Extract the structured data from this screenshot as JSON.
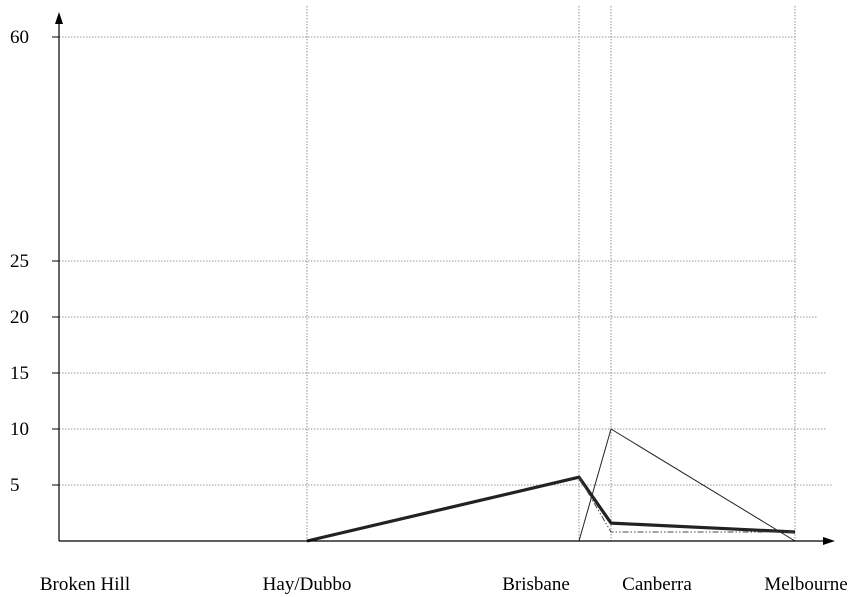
{
  "chart_data": {
    "type": "line",
    "title": "",
    "xlabel": "",
    "ylabel": "",
    "categories": [
      "Broken Hill",
      "Hay/Dubbo",
      "Brisbane",
      "Canberra",
      "Melbourne"
    ],
    "y_ticks": [
      "5",
      "10",
      "15",
      "20",
      "25",
      "60"
    ],
    "ylim": [
      0,
      60
    ],
    "grid": true,
    "series": [
      {
        "style": "thick-solid",
        "points": [
          {
            "x": "Hay/Dubbo",
            "y": 0
          },
          {
            "x": "Brisbane",
            "y": 5.7
          },
          {
            "x": "Brisbane-Canberra",
            "y": 1.6
          },
          {
            "x": "Melbourne",
            "y": 0.8
          }
        ]
      },
      {
        "style": "thin-solid",
        "points": [
          {
            "x": "Brisbane",
            "y": 0
          },
          {
            "x": "Brisbane-Canberra",
            "y": 10
          },
          {
            "x": "Melbourne",
            "y": 0
          }
        ]
      },
      {
        "style": "dash-dot",
        "points": [
          {
            "x": "Brisbane",
            "y": 5.7
          },
          {
            "x": "Brisbane-Canberra",
            "y": 0.8
          },
          {
            "x": "Melbourne",
            "y": 0.8
          }
        ]
      }
    ]
  }
}
